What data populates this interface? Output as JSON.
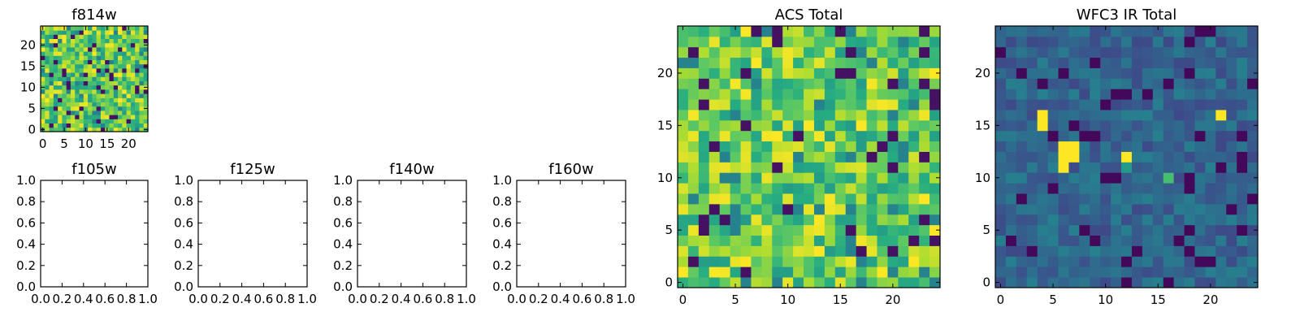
{
  "chart_data": [
    {
      "type": "heatmap",
      "title": "f814w",
      "grid_size": 25,
      "colormap": "viridis",
      "xticks": [
        "0",
        "5",
        "10",
        "15",
        "20"
      ],
      "yticks": [
        "0",
        "5",
        "10",
        "15",
        "20"
      ],
      "xlim": [
        -0.5,
        24.5
      ],
      "ylim": [
        -0.5,
        24.5
      ],
      "value_range": [
        0.0,
        1.0
      ],
      "seed": 814,
      "hotspots": []
    },
    {
      "type": "heatmap",
      "title": "f105w",
      "empty": true,
      "xticks": [
        "0.0",
        "0.2",
        "0.4",
        "0.6",
        "0.8",
        "1.0"
      ],
      "yticks": [
        "0.0",
        "0.2",
        "0.4",
        "0.6",
        "0.8",
        "1.0"
      ],
      "xlim": [
        0,
        1
      ],
      "ylim": [
        0,
        1
      ]
    },
    {
      "type": "heatmap",
      "title": "f125w",
      "empty": true,
      "xticks": [
        "0.0",
        "0.2",
        "0.4",
        "0.6",
        "0.8",
        "1.0"
      ],
      "yticks": [
        "0.0",
        "0.2",
        "0.4",
        "0.6",
        "0.8",
        "1.0"
      ],
      "xlim": [
        0,
        1
      ],
      "ylim": [
        0,
        1
      ]
    },
    {
      "type": "heatmap",
      "title": "f140w",
      "empty": true,
      "xticks": [
        "0.0",
        "0.2",
        "0.4",
        "0.6",
        "0.8",
        "1.0"
      ],
      "yticks": [
        "0.0",
        "0.2",
        "0.4",
        "0.6",
        "0.8",
        "1.0"
      ],
      "xlim": [
        0,
        1
      ],
      "ylim": [
        0,
        1
      ]
    },
    {
      "type": "heatmap",
      "title": "f160w",
      "empty": true,
      "xticks": [
        "0.0",
        "0.2",
        "0.4",
        "0.6",
        "0.8",
        "1.0"
      ],
      "yticks": [
        "0.0",
        "0.2",
        "0.4",
        "0.6",
        "0.8",
        "1.0"
      ],
      "xlim": [
        0,
        1
      ],
      "ylim": [
        0,
        1
      ]
    },
    {
      "type": "heatmap",
      "title": "ACS Total",
      "grid_size": 25,
      "colormap": "viridis",
      "xticks": [
        "0",
        "5",
        "10",
        "15",
        "20"
      ],
      "yticks": [
        "0",
        "5",
        "10",
        "15",
        "20"
      ],
      "xlim": [
        -0.5,
        24.5
      ],
      "ylim": [
        -0.5,
        24.5
      ],
      "value_range": [
        0.0,
        1.0
      ],
      "seed": 1234,
      "hotspots": []
    },
    {
      "type": "heatmap",
      "title": "WFC3 IR Total",
      "grid_size": 25,
      "colormap": "viridis",
      "xticks": [
        "0",
        "5",
        "10",
        "15",
        "20"
      ],
      "yticks": [
        "0",
        "5",
        "10",
        "15",
        "20"
      ],
      "xlim": [
        -0.5,
        24.5
      ],
      "ylim": [
        -0.5,
        24.5
      ],
      "value_range": [
        0.0,
        1.0
      ],
      "seed": 4242,
      "hotspots": [
        {
          "x": 4,
          "y": 16,
          "value": 1.0
        },
        {
          "x": 4,
          "y": 15,
          "value": 1.0
        },
        {
          "x": 6,
          "y": 13,
          "value": 1.0
        },
        {
          "x": 7,
          "y": 13,
          "value": 1.0
        },
        {
          "x": 6,
          "y": 12,
          "value": 1.0
        },
        {
          "x": 7,
          "y": 12,
          "value": 1.0
        },
        {
          "x": 6,
          "y": 11,
          "value": 1.0
        },
        {
          "x": 12,
          "y": 12,
          "value": 1.0
        },
        {
          "x": 21,
          "y": 16,
          "value": 1.0
        },
        {
          "x": 16,
          "y": 10,
          "value": 0.7
        },
        {
          "x": 12,
          "y": 11,
          "value": 0.55
        }
      ]
    }
  ]
}
